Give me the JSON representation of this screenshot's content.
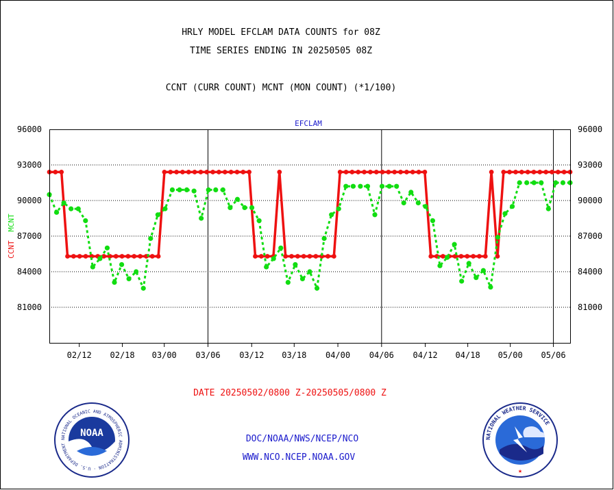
{
  "chart_data": {
    "type": "line",
    "title_lines": [
      "HRLY MODEL EFCLAM DATA COUNTS for 08Z",
      "TIME SERIES ENDING IN 20250505 08Z"
    ],
    "subtitle": "CCNT (CURR COUNT) MCNT (MON COUNT) (*1/100)",
    "panel_label": "EFCLAM",
    "ylabel_parts": [
      "CCNT",
      "MCNT"
    ],
    "xlabel": "DATE 20250502/0800 Z-20250505/0800 Z",
    "ylim": [
      78000,
      96000
    ],
    "yticks": [
      81000,
      84000,
      87000,
      90000,
      93000,
      96000
    ],
    "ytick_labels": [
      "81000",
      "84000",
      "87000",
      "90000",
      "93000",
      "96000"
    ],
    "xlim": [
      0,
      87
    ],
    "xtick_positions": [
      5,
      12.2,
      19.2,
      26.5,
      33.8,
      40.9,
      48.2,
      55.5,
      62.8,
      69.9,
      77.0,
      84.2
    ],
    "xtick_labels": [
      "02/12",
      "02/18",
      "03/00",
      "03/06",
      "03/12",
      "03/18",
      "04/00",
      "04/06",
      "04/12",
      "04/18",
      "05/00",
      "05/06"
    ],
    "day_boundaries": [
      26.5,
      55.5,
      84.2
    ],
    "grid": "horizontal dotted",
    "series": [
      {
        "name": "CCNT",
        "color": "#ee1111",
        "values": [
          92400,
          92400,
          92400,
          85300,
          85300,
          85300,
          85300,
          85300,
          85300,
          85300,
          85300,
          85300,
          85300,
          85300,
          85300,
          85300,
          85300,
          85300,
          85300,
          92400,
          92400,
          92400,
          92400,
          92400,
          92400,
          92400,
          92400,
          92400,
          92400,
          92400,
          92400,
          92400,
          92400,
          92400,
          85300,
          85300,
          85300,
          85300,
          92400,
          85300,
          85300,
          85300,
          85300,
          85300,
          85300,
          85300,
          85300,
          85300,
          92400,
          92400,
          92400,
          92400,
          92400,
          92400,
          92400,
          92400,
          92400,
          92400,
          92400,
          92400,
          92400,
          92400,
          92400,
          85300,
          85300,
          85300,
          85300,
          85300,
          85300,
          85300,
          85300,
          85300,
          85300,
          92400,
          85300,
          92400,
          92400,
          92400,
          92400,
          92400,
          92400,
          92400,
          92400,
          92400,
          92400,
          92400,
          92400
        ]
      },
      {
        "name": "MCNT",
        "color": "#11dd11",
        "values": [
          90500,
          89000,
          89800,
          89300,
          89300,
          88300,
          84400,
          85100,
          86000,
          83100,
          84600,
          83400,
          84000,
          82600,
          86800,
          88800,
          89300,
          90900,
          90900,
          90900,
          90800,
          88500,
          90900,
          90900,
          90900,
          89400,
          90100,
          89400,
          89400,
          88300,
          84400,
          85100,
          86000,
          83100,
          84600,
          83400,
          84000,
          82600,
          86800,
          88800,
          89300,
          91200,
          91200,
          91200,
          91200,
          88800,
          91200,
          91200,
          91200,
          89800,
          90700,
          89800,
          89500,
          88300,
          84500,
          85200,
          86300,
          83200,
          84700,
          83500,
          84100,
          82700,
          86900,
          88900,
          89500,
          91500,
          91500,
          91500,
          91500,
          89300,
          91500,
          91500,
          91500
        ]
      }
    ]
  },
  "footer": {
    "org_line": "DOC/NOAA/NWS/NCEP/NCO",
    "url_line": "WWW.NCO.NCEP.NOAA.GOV"
  },
  "logos": {
    "left_center_text": "NOAA",
    "left_ring_text": "NATIONAL OCEANIC AND ATMOSPHERIC ADMINISTRATION · U.S. DEPARTMENT OF COMMERCE",
    "right_ring_text": "NATIONAL WEATHER SERVICE"
  }
}
